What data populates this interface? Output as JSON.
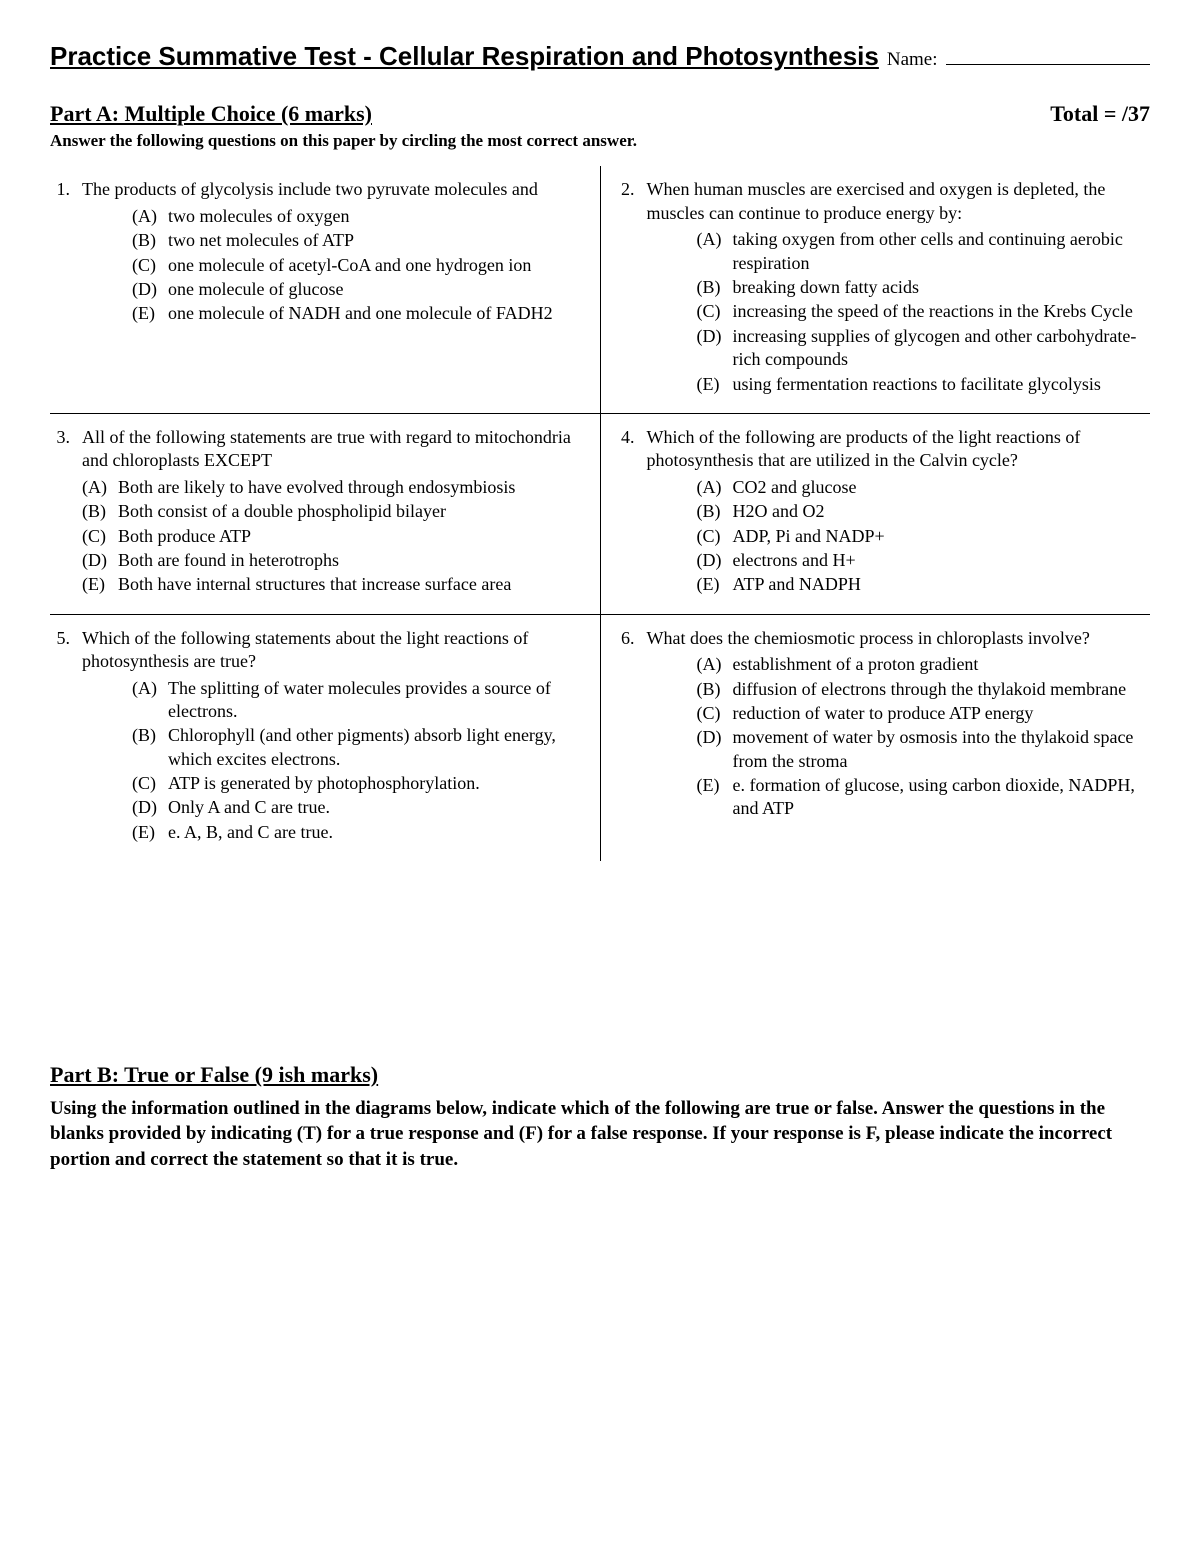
{
  "header": {
    "title": "Practice Summative Test - Cellular Respiration and Photosynthesis",
    "name_label": "Name:"
  },
  "partA": {
    "title": "Part A: Multiple Choice (6 marks)",
    "total_label": "Total =    /37",
    "instructions": "Answer the following questions on this paper by circling the most correct answer.",
    "questions": [
      {
        "num": "1.",
        "stem": "The products of glycolysis include two pyruvate molecules and",
        "indent": true,
        "options": [
          {
            "l": "(A)",
            "t": "two molecules of oxygen"
          },
          {
            "l": "(B)",
            "t": "two net molecules of ATP"
          },
          {
            "l": "(C)",
            "t": "one molecule of acetyl-CoA and one hydrogen ion"
          },
          {
            "l": "(D)",
            "t": "one molecule of glucose"
          },
          {
            "l": "(E)",
            "t": "one molecule of NADH and one molecule of FADH2"
          }
        ]
      },
      {
        "num": "2.",
        "stem": "When human muscles are exercised and oxygen is depleted, the muscles can continue to produce energy by:",
        "indent": true,
        "options": [
          {
            "l": "(A)",
            "t": "taking oxygen from other cells and continuing aerobic respiration"
          },
          {
            "l": "(B)",
            "t": "breaking down fatty acids"
          },
          {
            "l": "(C)",
            "t": "increasing the speed of the reactions in the Krebs Cycle"
          },
          {
            "l": "(D)",
            "t": "increasing supplies of glycogen and other carbohydrate-rich compounds"
          },
          {
            "l": "(E)",
            "t": "using fermentation reactions to facilitate glycolysis"
          }
        ]
      },
      {
        "num": "3.",
        "stem": "All of the following statements are true with regard to mitochondria and chloroplasts EXCEPT",
        "indent": false,
        "options": [
          {
            "l": "(A)",
            "t": "Both are likely to have evolved through endosymbiosis"
          },
          {
            "l": "(B)",
            "t": "Both consist of a double phospholipid bilayer"
          },
          {
            "l": "(C)",
            "t": "Both produce ATP"
          },
          {
            "l": "(D)",
            "t": "Both are found in heterotrophs"
          },
          {
            "l": "(E)",
            "t": "Both have internal structures that increase surface area"
          }
        ]
      },
      {
        "num": "4.",
        "stem": "Which of the following are products of the light reactions of photosynthesis that are utilized in the Calvin cycle?",
        "indent": true,
        "options": [
          {
            "l": "(A)",
            "t": "CO2 and glucose"
          },
          {
            "l": "(B)",
            "t": "H2O and O2"
          },
          {
            "l": "(C)",
            "t": "ADP, Pi and NADP+"
          },
          {
            "l": "(D)",
            "t": "electrons and H+"
          },
          {
            "l": "(E)",
            "t": "ATP and NADPH"
          }
        ]
      },
      {
        "num": "5.",
        "stem": "Which of the following statements about the light reactions of photosynthesis are true?",
        "indent": true,
        "options": [
          {
            "l": "(A)",
            "t": "The splitting of water molecules provides a source of electrons."
          },
          {
            "l": "(B)",
            "t": "Chlorophyll (and other pigments) absorb light energy, which excites electrons."
          },
          {
            "l": "(C)",
            "t": "ATP is generated by photophosphorylation."
          },
          {
            "l": "(D)",
            "t": "Only A and C are true."
          },
          {
            "l": "(E)",
            "t": "e. A, B, and C are true."
          }
        ]
      },
      {
        "num": "6.",
        "stem": "What does the chemiosmotic process in chloroplasts involve?",
        "indent": true,
        "options": [
          {
            "l": "(A)",
            "t": "establishment of a proton gradient"
          },
          {
            "l": "(B)",
            "t": "diffusion of electrons through the thylakoid membrane"
          },
          {
            "l": "(C)",
            "t": "reduction of water to produce ATP energy"
          },
          {
            "l": "(D)",
            "t": "movement of water by osmosis into the thylakoid space from the stroma"
          },
          {
            "l": "(E)",
            "t": "e. formation of glucose, using carbon dioxide, NADPH, and ATP"
          }
        ]
      }
    ]
  },
  "partB": {
    "title": "Part B: True or False (9 ish marks)",
    "instructions": "Using the information outlined in the diagrams below, indicate which of the following are true or false. Answer the questions in the blanks provided by indicating (T) for a true response and (F) for a false response.  If your response is F, please indicate the incorrect portion and correct the statement so that it is true."
  }
}
